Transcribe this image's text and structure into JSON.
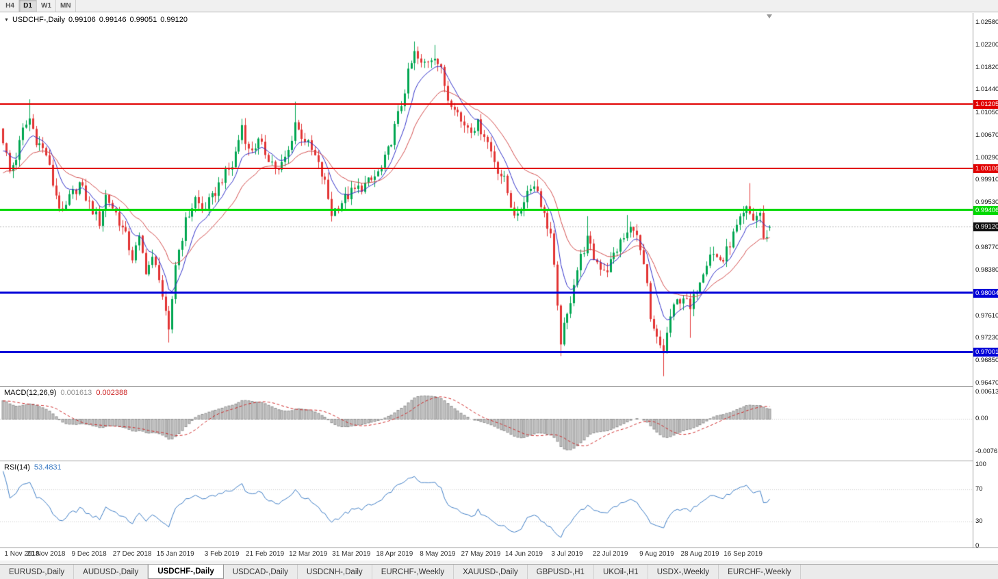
{
  "toolbar": {
    "timeframes": [
      {
        "label": "H4",
        "active": false
      },
      {
        "label": "D1",
        "active": true
      },
      {
        "label": "W1",
        "active": false
      },
      {
        "label": "MN",
        "active": false
      }
    ]
  },
  "chart": {
    "symbol_header": "USDCHF-,Daily",
    "ohlc": {
      "open": "0.99106",
      "high": "0.99146",
      "low": "0.99051",
      "close": "0.99120"
    }
  },
  "price_axis": {
    "ticks": [
      "1.02580",
      "1.02200",
      "1.01820",
      "1.01440",
      "1.01050",
      "1.00670",
      "1.00290",
      "0.99910",
      "0.99530",
      "0.98770",
      "0.98380",
      "0.97610",
      "0.97230",
      "0.96850",
      "0.96470"
    ]
  },
  "time_axis": {
    "labels": [
      "1 Nov 2018",
      "20 Nov 2018",
      "9 Dec 2018",
      "27 Dec 2018",
      "15 Jan 2019",
      "3 Feb 2019",
      "21 Feb 2019",
      "12 Mar 2019",
      "31 Mar 2019",
      "18 Apr 2019",
      "8 May 2019",
      "27 May 2019",
      "14 Jun 2019",
      "3 Jul 2019",
      "22 Jul 2019",
      "9 Aug 2019",
      "28 Aug 2019",
      "16 Sep 2019"
    ]
  },
  "macd": {
    "label": "MACD(12,26,9)",
    "value_main": "0.001613",
    "value_signal": "0.002388",
    "axis": [
      "0.00613",
      "0.00",
      "-0.00761"
    ]
  },
  "rsi": {
    "label": "RSI(14)",
    "value": "53.4831",
    "axis": [
      "100",
      "70",
      "30",
      "0"
    ]
  },
  "tabs": {
    "items": [
      {
        "label": "EURUSD-,Daily",
        "active": false
      },
      {
        "label": "AUDUSD-,Daily",
        "active": false
      },
      {
        "label": "USDCHF-,Daily",
        "active": true
      },
      {
        "label": "USDCAD-,Daily",
        "active": false
      },
      {
        "label": "USDCNH-,Daily",
        "active": false
      },
      {
        "label": "EURCHF-,Weekly",
        "active": false
      },
      {
        "label": "XAUUSD-,Daily",
        "active": false
      },
      {
        "label": "GBPUSD-,H1",
        "active": false
      },
      {
        "label": "UKOil-,H1",
        "active": false
      },
      {
        "label": "USDX-,Weekly",
        "active": false
      },
      {
        "label": "EURCHF-,Weekly",
        "active": false
      }
    ]
  },
  "chart_data": {
    "type": "candlestick",
    "symbol": "USDCHF-",
    "timeframe": "Daily",
    "title": "USDCHF-,Daily",
    "visible_range": {
      "start": "1 Nov 2018",
      "end": "20 Sep 2019",
      "bars": 232
    },
    "y_axis": {
      "min": 0.9647,
      "max": 1.0258
    },
    "last_bar": {
      "open": 0.99106,
      "high": 0.99146,
      "low": 0.99051,
      "close": 0.9912
    },
    "horizontal_levels": [
      {
        "price": 1.01205,
        "color": "#e10000",
        "thickness": 2,
        "label": "1.01205"
      },
      {
        "price": 1.00106,
        "color": "#e10000",
        "thickness": 2,
        "label": "1.00106"
      },
      {
        "price": 0.99406,
        "color": "#00d800",
        "thickness": 3,
        "label": "0.99406"
      },
      {
        "price": 0.98004,
        "color": "#0000d8",
        "thickness": 3,
        "label": "0.98004"
      },
      {
        "price": 0.97001,
        "color": "#0000d8",
        "thickness": 3,
        "label": "0.97001"
      }
    ],
    "current_price_badge": {
      "price": 0.9912,
      "color": "#111111",
      "label": "0.99120"
    },
    "close_path": [
      [
        0,
        1.006
      ],
      [
        2,
        1.0005
      ],
      [
        4,
        1.003
      ],
      [
        6,
        1.0075
      ],
      [
        8,
        1.0095
      ],
      [
        10,
        1.006
      ],
      [
        13,
        1.0035
      ],
      [
        15,
        0.9985
      ],
      [
        18,
        0.993
      ],
      [
        20,
        0.996
      ],
      [
        23,
        0.9985
      ],
      [
        26,
        0.995
      ],
      [
        29,
        0.992
      ],
      [
        31,
        0.9965
      ],
      [
        34,
        0.9935
      ],
      [
        37,
        0.9895
      ],
      [
        39,
        0.986
      ],
      [
        41,
        0.989
      ],
      [
        43,
        0.984
      ],
      [
        45,
        0.9855
      ],
      [
        47,
        0.983
      ],
      [
        49,
        0.976
      ],
      [
        50,
        0.973
      ],
      [
        52,
        0.985
      ],
      [
        55,
        0.992
      ],
      [
        58,
        0.996
      ],
      [
        60,
        0.994
      ],
      [
        63,
        0.996
      ],
      [
        66,
        0.9995
      ],
      [
        69,
        1.0015
      ],
      [
        71,
        1.006
      ],
      [
        72,
        1.0085
      ],
      [
        74,
        1.004
      ],
      [
        77,
        1.0055
      ],
      [
        80,
        1.003
      ],
      [
        83,
        1.0005
      ],
      [
        86,
        1.004
      ],
      [
        88,
        1.009
      ],
      [
        89,
        1.0075
      ],
      [
        91,
        1.006
      ],
      [
        94,
        1.003
      ],
      [
        97,
        0.9985
      ],
      [
        99,
        0.9935
      ],
      [
        102,
        0.9955
      ],
      [
        105,
        0.997
      ],
      [
        108,
        0.998
      ],
      [
        111,
        0.999
      ],
      [
        114,
        1.001
      ],
      [
        116,
        1.004
      ],
      [
        118,
        1.008
      ],
      [
        120,
        1.012
      ],
      [
        122,
        1.017
      ],
      [
        124,
        1.0205
      ],
      [
        126,
        1.0185
      ],
      [
        128,
        1.0195
      ],
      [
        130,
        1.0205
      ],
      [
        132,
        1.0175
      ],
      [
        134,
        1.013
      ],
      [
        136,
        1.012
      ],
      [
        138,
        1.009
      ],
      [
        141,
        1.008
      ],
      [
        143,
        1.0085
      ],
      [
        145,
        1.007
      ],
      [
        147,
        1.004
      ],
      [
        149,
        1.001
      ],
      [
        151,
        0.999
      ],
      [
        153,
        0.995
      ],
      [
        155,
        0.9925
      ],
      [
        157,
        0.996
      ],
      [
        159,
        0.9985
      ],
      [
        161,
        0.9975
      ],
      [
        163,
        0.993
      ],
      [
        165,
        0.99
      ],
      [
        166,
        0.984
      ],
      [
        167,
        0.977
      ],
      [
        168,
        0.972
      ],
      [
        170,
        0.976
      ],
      [
        172,
        0.982
      ],
      [
        174,
        0.986
      ],
      [
        176,
        0.989
      ],
      [
        178,
        0.986
      ],
      [
        180,
        0.9845
      ],
      [
        182,
        0.984
      ],
      [
        184,
        0.9865
      ],
      [
        186,
        0.9885
      ],
      [
        188,
        0.99
      ],
      [
        190,
        0.9915
      ],
      [
        192,
        0.987
      ],
      [
        194,
        0.981
      ],
      [
        195,
        0.975
      ],
      [
        197,
        0.972
      ],
      [
        199,
        0.97
      ],
      [
        201,
        0.976
      ],
      [
        203,
        0.9785
      ],
      [
        205,
        0.9795
      ],
      [
        207,
        0.977
      ],
      [
        209,
        0.981
      ],
      [
        211,
        0.984
      ],
      [
        213,
        0.987
      ],
      [
        215,
        0.986
      ],
      [
        217,
        0.9855
      ],
      [
        219,
        0.9885
      ],
      [
        221,
        0.991
      ],
      [
        223,
        0.993
      ],
      [
        224,
        0.994
      ],
      [
        226,
        0.9925
      ],
      [
        228,
        0.9936
      ],
      [
        229,
        0.9888
      ],
      [
        231,
        0.9912
      ]
    ],
    "spikes": [
      {
        "i": 8,
        "high": 1.0128
      },
      {
        "i": 50,
        "low": 0.9716
      },
      {
        "i": 72,
        "high": 1.0095
      },
      {
        "i": 88,
        "high": 1.0124
      },
      {
        "i": 99,
        "low": 0.9921
      },
      {
        "i": 124,
        "high": 1.0226
      },
      {
        "i": 130,
        "high": 1.022
      },
      {
        "i": 168,
        "low": 0.9693
      },
      {
        "i": 176,
        "high": 0.993
      },
      {
        "i": 188,
        "high": 0.9932
      },
      {
        "i": 199,
        "low": 0.9659
      },
      {
        "i": 207,
        "low": 0.9724
      },
      {
        "i": 225,
        "high": 0.9986
      }
    ],
    "warmup": {
      "bars": 40,
      "from": 0.98,
      "to": 1.006
    },
    "moving_averages": [
      {
        "type": "ema",
        "period": 8,
        "color": "#2e2ec8"
      },
      {
        "type": "ema",
        "period": 20,
        "color": "#d24a4a"
      }
    ],
    "indicators": {
      "macd": {
        "fast": 12,
        "slow": 26,
        "signal": 9,
        "current_macd": 0.001613,
        "current_signal": 0.002388,
        "axis_max": 0.00613,
        "axis_min": -0.00761
      },
      "rsi": {
        "period": 14,
        "current": 53.4831,
        "levels": [
          70,
          30
        ]
      }
    },
    "colors": {
      "up": "#00a651",
      "down": "#e23434",
      "macd_hist_fill": "#c8c8c8",
      "macd_hist_edge": "#8f8f8f",
      "macd_signal": "#cc2222",
      "rsi_line": "#3b7bc4",
      "bid_line": "#b5b5b5"
    }
  }
}
